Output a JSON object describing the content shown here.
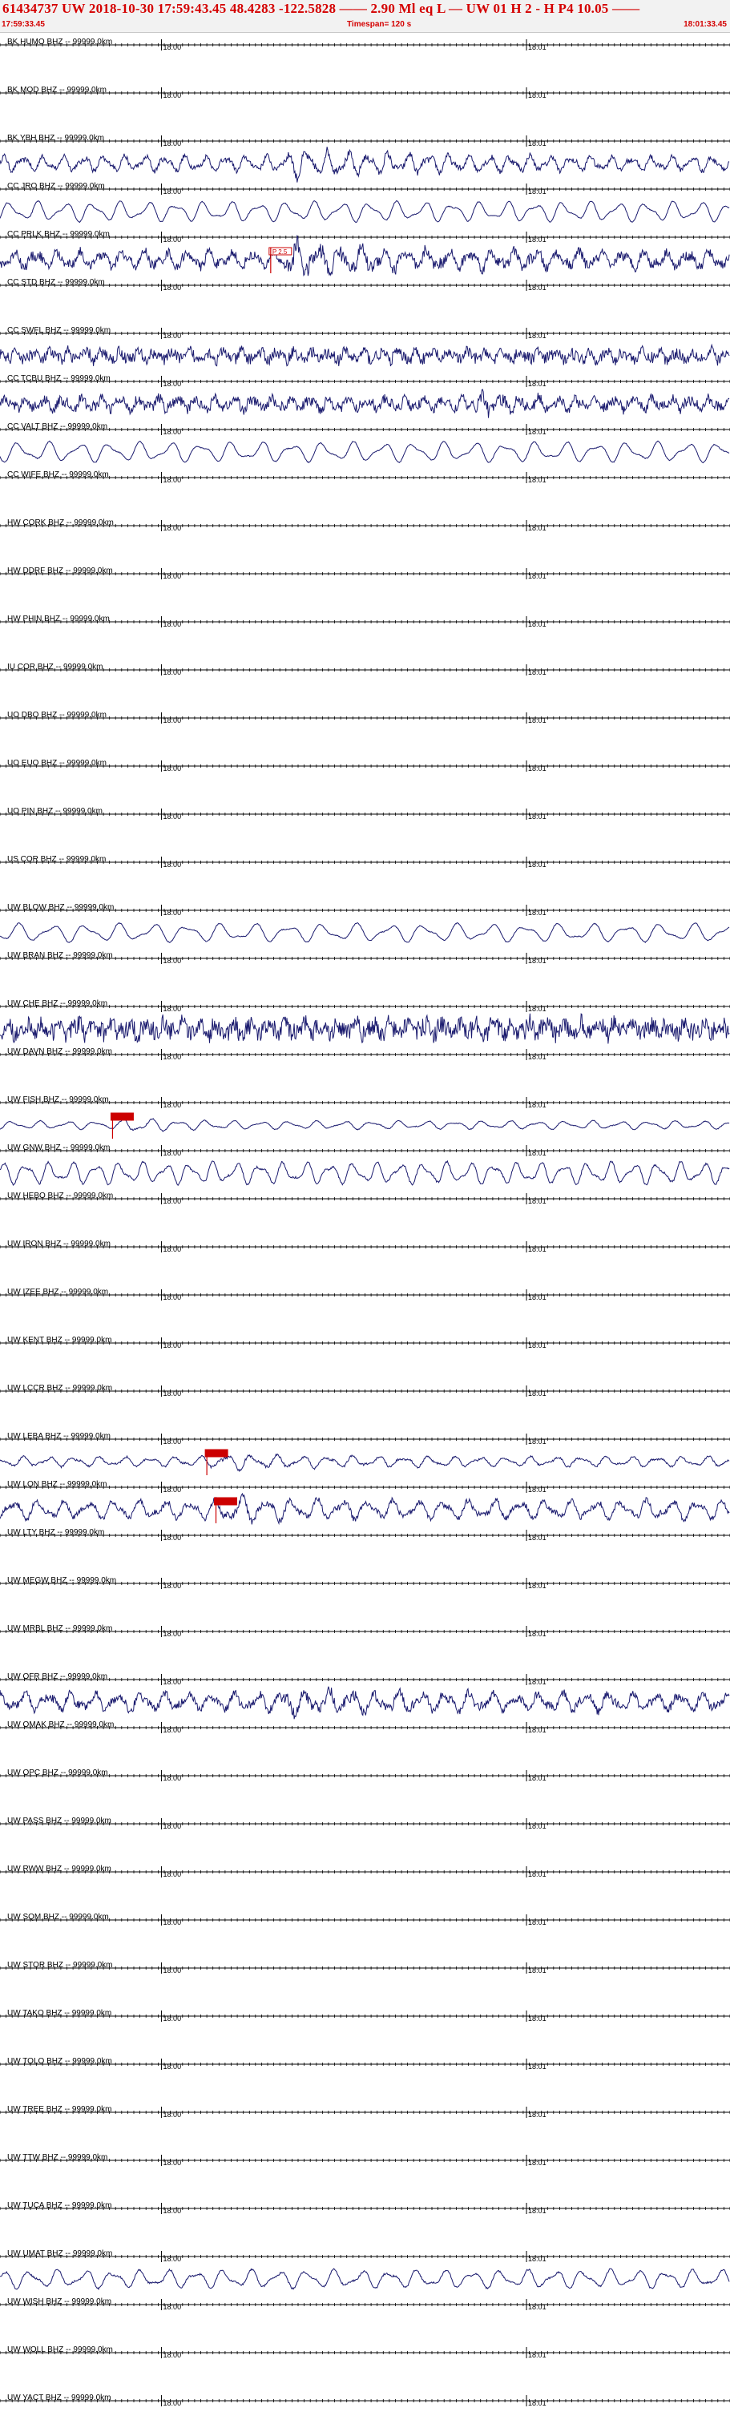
{
  "header": {
    "title_line": "61434737 UW 2018-10-30 17:59:43.45    48.4283 -122.5828 ——  2.90 Ml  eq  L —       UW 01  H   2  -  H P4   10.05 ——",
    "start_time": "17:59:33.45",
    "timespan": "Timespan= 120 s",
    "end_time": "18:01:33.45"
  },
  "colors": {
    "trace": "#1a1a6e",
    "axis": "#000000",
    "text_red": "#d40000",
    "pick_fill": "#cc0000"
  },
  "chart_data": {
    "type": "line",
    "title": "",
    "xlabel": "",
    "ylabel": "",
    "x_range_seconds": [
      0,
      120
    ],
    "tick_labels": [
      {
        "label": "18:00",
        "t": 26.55
      },
      {
        "label": "18:01",
        "t": 86.55
      }
    ],
    "minor_tick_interval_s": 1,
    "major_tick_interval_s": 5,
    "stations": [
      {
        "label": "BK HUMO BHZ -- 99999.0km",
        "amp": 0,
        "freq": 0,
        "noise": 0,
        "burst": null
      },
      {
        "label": "BK MOD BHZ -- 99999.0km",
        "amp": 0,
        "freq": 0,
        "noise": 0,
        "burst": null
      },
      {
        "label": "BK YBH BHZ -- 99999.0km",
        "amp": 9,
        "freq": 0.3,
        "noise": 0.35,
        "burst": [
          46,
          95,
          2.0
        ]
      },
      {
        "label": "CC JRO BHZ -- 99999.0km",
        "amp": 12,
        "freq": 0.22,
        "noise": 0.05,
        "burst": null
      },
      {
        "label": "CC PRLK BHZ -- 99999.0km",
        "amp": 10,
        "freq": 0.28,
        "noise": 0.6,
        "burst": [
          46,
          90,
          2.0
        ],
        "pick": {
          "t": 44.5,
          "label": "P 2.5"
        }
      },
      {
        "label": "CC STD BHZ -- 99999.0km",
        "amp": 0,
        "freq": 0,
        "noise": 0,
        "burst": null
      },
      {
        "label": "CC SWFL BHZ -- 99999.0km",
        "amp": 6,
        "freq": 0.35,
        "noise": 1.2,
        "burst": null
      },
      {
        "label": "CC TCBU BHZ -- 99999.0km",
        "amp": 7,
        "freq": 0.32,
        "noise": 0.9,
        "burst": [
          78,
          92,
          1.8
        ]
      },
      {
        "label": "CC VALT BHZ -- 99999.0km",
        "amp": 12,
        "freq": 0.2,
        "noise": 0.05,
        "burst": null
      },
      {
        "label": "CC WIFE BHZ -- 99999.0km",
        "amp": 0,
        "freq": 0,
        "noise": 0,
        "burst": null
      },
      {
        "label": "HW CORK BHZ -- 99999.0km",
        "amp": 0,
        "freq": 0,
        "noise": 0,
        "burst": null
      },
      {
        "label": "HW DDRF BHZ -- 99999.0km",
        "amp": 0,
        "freq": 0,
        "noise": 0,
        "burst": null
      },
      {
        "label": "HW PHIN BHZ -- 99999.0km",
        "amp": 0,
        "freq": 0,
        "noise": 0,
        "burst": null
      },
      {
        "label": "IU COR BHZ -- 99999.0km",
        "amp": 0,
        "freq": 0,
        "noise": 0,
        "burst": null
      },
      {
        "label": "UO DBO BHZ -- 99999.0km",
        "amp": 0,
        "freq": 0,
        "noise": 0,
        "burst": null
      },
      {
        "label": "UO EUO BHZ -- 99999.0km",
        "amp": 0,
        "freq": 0,
        "noise": 0,
        "burst": null
      },
      {
        "label": "UO PIN BHZ -- 99999.0km",
        "amp": 0,
        "freq": 0,
        "noise": 0,
        "burst": null
      },
      {
        "label": "US COR BHZ -- 99999.0km",
        "amp": 0,
        "freq": 0,
        "noise": 0,
        "burst": null
      },
      {
        "label": "UW BLOW BHZ -- 99999.0km",
        "amp": 11,
        "freq": 0.18,
        "noise": 0.05,
        "burst": null
      },
      {
        "label": "UW BRAN BHZ -- 99999.0km",
        "amp": 0,
        "freq": 0,
        "noise": 0,
        "burst": null
      },
      {
        "label": "UW CHE BHZ -- 99999.0km",
        "amp": 8,
        "freq": 0.35,
        "noise": 1.4,
        "burst": null
      },
      {
        "label": "UW DAVN BHZ -- 99999.0km",
        "amp": 0,
        "freq": 0,
        "noise": 0,
        "burst": null
      },
      {
        "label": "UW FISH BHZ -- 99999.0km",
        "amp": 5,
        "freq": 0.22,
        "noise": 0.1,
        "burst": [
          20,
          38,
          2.4
        ],
        "pick": {
          "t": 18.5,
          "label": ""
        }
      },
      {
        "label": "UW GNW BHZ -- 99999.0km",
        "amp": 13,
        "freq": 0.26,
        "noise": 0.1,
        "burst": null
      },
      {
        "label": "UW HEBO BHZ -- 99999.0km",
        "amp": 0,
        "freq": 0,
        "noise": 0,
        "burst": null
      },
      {
        "label": "UW IRON BHZ -- 99999.0km",
        "amp": 0,
        "freq": 0,
        "noise": 0,
        "burst": null
      },
      {
        "label": "UW IZEE BHZ -- 99999.0km",
        "amp": 0,
        "freq": 0,
        "noise": 0,
        "burst": null
      },
      {
        "label": "UW KENT BHZ -- 99999.0km",
        "amp": 0,
        "freq": 0,
        "noise": 0,
        "burst": null
      },
      {
        "label": "UW LCCR BHZ -- 99999.0km",
        "amp": 0,
        "freq": 0,
        "noise": 0,
        "burst": null
      },
      {
        "label": "UW LEBA BHZ -- 99999.0km",
        "amp": 6,
        "freq": 0.24,
        "noise": 0.2,
        "burst": [
          34,
          80,
          1.8
        ],
        "pick": {
          "t": 34.0,
          "label": ""
        }
      },
      {
        "label": "UW LON BHZ -- 99999.0km",
        "amp": 11,
        "freq": 0.24,
        "noise": 0.3,
        "burst": [
          35,
          70,
          1.6
        ],
        "pick": {
          "t": 35.5,
          "label": ""
        }
      },
      {
        "label": "UW LTY BHZ -- 99999.0km",
        "amp": 0,
        "freq": 0,
        "noise": 0,
        "burst": null
      },
      {
        "label": "UW MEGW BHZ -- 99999.0km",
        "amp": 0,
        "freq": 0,
        "noise": 0,
        "burst": null
      },
      {
        "label": "UW MRBL BHZ -- 99999.0km",
        "amp": 0,
        "freq": 0,
        "noise": 0,
        "burst": null
      },
      {
        "label": "UW OFR BHZ -- 99999.0km",
        "amp": 10,
        "freq": 0.26,
        "noise": 0.5,
        "burst": [
          45,
          100,
          1.6
        ]
      },
      {
        "label": "UW OMAK BHZ -- 99999.0km",
        "amp": 0,
        "freq": 0,
        "noise": 0,
        "burst": null
      },
      {
        "label": "UW OPC BHZ -- 99999.0km",
        "amp": 0,
        "freq": 0,
        "noise": 0,
        "burst": null
      },
      {
        "label": "UW PASS BHZ -- 99999.0km",
        "amp": 0,
        "freq": 0,
        "noise": 0,
        "burst": null
      },
      {
        "label": "UW RWW BHZ -- 99999.0km",
        "amp": 0,
        "freq": 0,
        "noise": 0,
        "burst": null
      },
      {
        "label": "UW SQM BHZ -- 99999.0km",
        "amp": 0,
        "freq": 0,
        "noise": 0,
        "burst": null
      },
      {
        "label": "UW STOR BHZ -- 99999.0km",
        "amp": 0,
        "freq": 0,
        "noise": 0,
        "burst": null
      },
      {
        "label": "UW TAKO BHZ -- 99999.0km",
        "amp": 0,
        "freq": 0,
        "noise": 0,
        "burst": null
      },
      {
        "label": "UW TOLO BHZ -- 99999.0km",
        "amp": 0,
        "freq": 0,
        "noise": 0,
        "burst": null
      },
      {
        "label": "UW TREE BHZ -- 99999.0km",
        "amp": 0,
        "freq": 0,
        "noise": 0,
        "burst": null
      },
      {
        "label": "UW TTW BHZ -- 99999.0km",
        "amp": 0,
        "freq": 0,
        "noise": 0,
        "burst": null
      },
      {
        "label": "UW TUCA BHZ -- 99999.0km",
        "amp": 0,
        "freq": 0,
        "noise": 0,
        "burst": null
      },
      {
        "label": "UW UMAT BHZ -- 99999.0km",
        "amp": 11,
        "freq": 0.22,
        "noise": 0.1,
        "burst": null
      },
      {
        "label": "UW WISH BHZ -- 99999.0km",
        "amp": 0,
        "freq": 0,
        "noise": 0,
        "burst": null
      },
      {
        "label": "UW WOLL BHZ -- 99999.0km",
        "amp": 0,
        "freq": 0,
        "noise": 0,
        "burst": null
      },
      {
        "label": "UW YACT BHZ -- 99999.0km",
        "amp": 0,
        "freq": 0,
        "noise": 0,
        "burst": null
      }
    ]
  }
}
